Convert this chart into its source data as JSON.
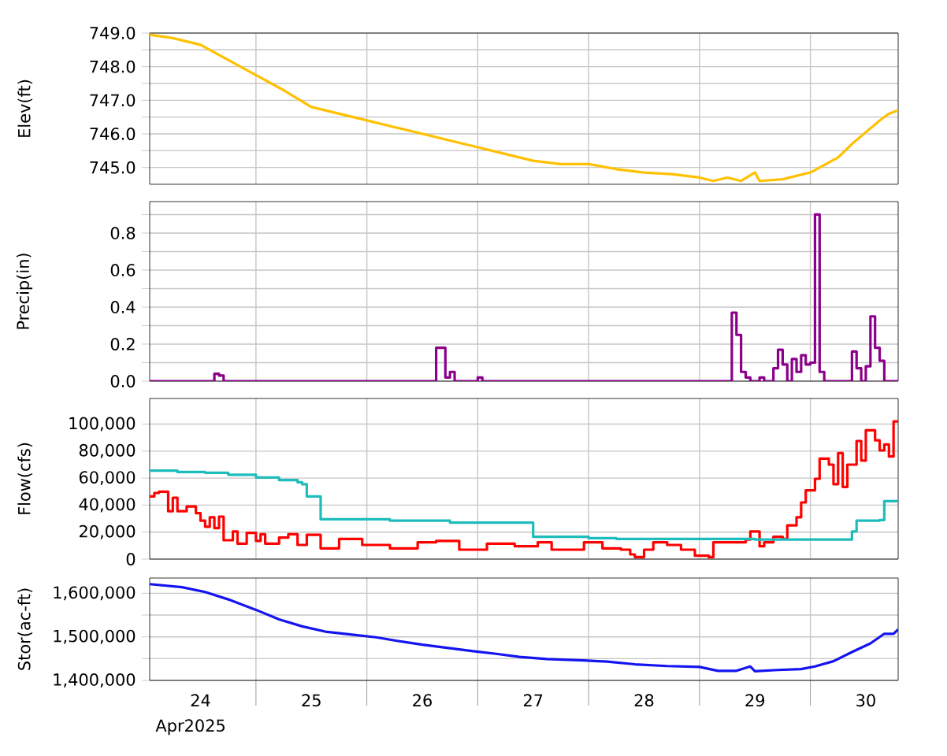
{
  "chart_data": [
    {
      "type": "line",
      "ylabel": "Elev(ft)",
      "color": "#ffc000",
      "grid": true,
      "tick_labels": "y",
      "xlim": [
        "2025-04-24T01:00",
        "2025-04-30T19:00"
      ],
      "xticks": [
        {
          "value": "2025-04-25T00:00",
          "label": null
        },
        {
          "value": "2025-04-26T00:00",
          "label": null
        },
        {
          "value": "2025-04-27T00:00",
          "label": null
        },
        {
          "value": "2025-04-28T00:00",
          "label": null
        },
        {
          "value": "2025-04-29T00:00",
          "label": null
        },
        {
          "value": "2025-04-30T00:00",
          "label": null
        }
      ],
      "ylim": [
        744.5,
        749.0
      ],
      "yticks": [
        {
          "value": 745,
          "label": "745.0"
        },
        {
          "value": 745.5,
          "label": null
        },
        {
          "value": 746,
          "label": "746.0"
        },
        {
          "value": 746.5,
          "label": null
        },
        {
          "value": 747,
          "label": "747.0"
        },
        {
          "value": 747.5,
          "label": null
        },
        {
          "value": 748,
          "label": "748.0"
        },
        {
          "value": 748.5,
          "label": null
        },
        {
          "value": 749,
          "label": "749.0"
        }
      ],
      "x": [
        "2025-04-24T01:00",
        "2025-04-24T06:00",
        "2025-04-24T12:00",
        "2025-04-24T18:00",
        "2025-04-25T00:00",
        "2025-04-25T06:00",
        "2025-04-25T12:00",
        "2025-04-25T18:00",
        "2025-04-26T00:00",
        "2025-04-26T06:00",
        "2025-04-26T12:00",
        "2025-04-26T18:00",
        "2025-04-27T00:00",
        "2025-04-27T06:00",
        "2025-04-27T12:00",
        "2025-04-27T18:00",
        "2025-04-28T00:00",
        "2025-04-28T06:00",
        "2025-04-28T12:00",
        "2025-04-28T18:00",
        "2025-04-29T00:00",
        "2025-04-29T03:00",
        "2025-04-29T06:00",
        "2025-04-29T09:00",
        "2025-04-29T12:00",
        "2025-04-29T13:00",
        "2025-04-29T18:00",
        "2025-04-30T00:00",
        "2025-04-30T06:00",
        "2025-04-30T09:00",
        "2025-04-30T12:00",
        "2025-04-30T15:00",
        "2025-04-30T17:00",
        "2025-04-30T19:00"
      ],
      "values": [
        748.95,
        748.85,
        748.65,
        748.2,
        747.75,
        747.3,
        746.8,
        746.6,
        746.4,
        746.2,
        746.0,
        745.8,
        745.6,
        745.4,
        745.2,
        745.1,
        745.1,
        744.95,
        744.85,
        744.8,
        744.7,
        744.6,
        744.7,
        744.6,
        744.85,
        744.6,
        744.65,
        744.85,
        745.3,
        745.7,
        746.05,
        746.4,
        746.6,
        746.7
      ]
    },
    {
      "type": "step",
      "ylabel": "Precip(in)",
      "color": "#8b008b",
      "grid": true,
      "tick_labels": "y",
      "xlim": [
        "2025-04-24T01:00",
        "2025-04-30T19:00"
      ],
      "xticks": [
        {
          "value": "2025-04-25T00:00",
          "label": null
        },
        {
          "value": "2025-04-26T00:00",
          "label": null
        },
        {
          "value": "2025-04-27T00:00",
          "label": null
        },
        {
          "value": "2025-04-28T00:00",
          "label": null
        },
        {
          "value": "2025-04-29T00:00",
          "label": null
        },
        {
          "value": "2025-04-30T00:00",
          "label": null
        }
      ],
      "ylim": [
        0,
        0.97
      ],
      "yticks": [
        {
          "value": 0,
          "label": "0.0"
        },
        {
          "value": 0.1,
          "label": null
        },
        0.2,
        {
          "value": 0.3,
          "label": null
        },
        0.4,
        {
          "value": 0.5,
          "label": null
        },
        0.6,
        {
          "value": 0.7,
          "label": null
        },
        0.8,
        {
          "value": 0.9,
          "label": null
        }
      ],
      "x": [
        "2025-04-24T01:00",
        "2025-04-24T15:00",
        "2025-04-24T16:00",
        "2025-04-24T17:00",
        "2025-04-26T15:00",
        "2025-04-26T17:00",
        "2025-04-26T18:00",
        "2025-04-26T19:00",
        "2025-04-27T00:00",
        "2025-04-27T01:00",
        "2025-04-29T07:00",
        "2025-04-29T08:00",
        "2025-04-29T09:00",
        "2025-04-29T10:00",
        "2025-04-29T11:00",
        "2025-04-29T13:00",
        "2025-04-29T14:00",
        "2025-04-29T16:00",
        "2025-04-29T17:00",
        "2025-04-29T18:00",
        "2025-04-29T19:00",
        "2025-04-29T20:00",
        "2025-04-29T21:00",
        "2025-04-29T22:00",
        "2025-04-29T23:00",
        "2025-04-30T00:00",
        "2025-04-30T01:00",
        "2025-04-30T02:00",
        "2025-04-30T03:00",
        "2025-04-30T09:00",
        "2025-04-30T10:00",
        "2025-04-30T11:00",
        "2025-04-30T12:00",
        "2025-04-30T13:00",
        "2025-04-30T14:00",
        "2025-04-30T15:00",
        "2025-04-30T16:00",
        "2025-04-30T19:00"
      ],
      "values": [
        0,
        0.04,
        0.03,
        0,
        0.18,
        0.02,
        0.05,
        0,
        0.02,
        0,
        0.37,
        0.25,
        0.05,
        0.02,
        0,
        0.02,
        0,
        0.07,
        0.17,
        0.09,
        0,
        0.12,
        0.05,
        0.14,
        0.09,
        0.1,
        0.9,
        0.05,
        0,
        0.16,
        0.07,
        0,
        0.08,
        0.35,
        0.18,
        0.11,
        0,
        0
      ]
    },
    {
      "type": "step",
      "ylabel": "Flow(cfs)",
      "grid": true,
      "tick_labels": "y",
      "xlim": [
        "2025-04-24T01:00",
        "2025-04-30T19:00"
      ],
      "xticks": [
        {
          "value": "2025-04-25T00:00",
          "label": null
        },
        {
          "value": "2025-04-26T00:00",
          "label": null
        },
        {
          "value": "2025-04-27T00:00",
          "label": null
        },
        {
          "value": "2025-04-28T00:00",
          "label": null
        },
        {
          "value": "2025-04-29T00:00",
          "label": null
        },
        {
          "value": "2025-04-30T00:00",
          "label": null
        }
      ],
      "ylim": [
        0,
        119000
      ],
      "yticks": [
        0,
        {
          "value": 20000,
          "label": "20,000"
        },
        {
          "value": 40000,
          "label": "40,000"
        },
        {
          "value": 60000,
          "label": "60,000"
        },
        {
          "value": 80000,
          "label": "80,000"
        },
        {
          "value": 100000,
          "label": "100,000"
        }
      ],
      "series": [
        {
          "color": "#ff0000",
          "x": [
            "2025-04-24T01:00",
            "2025-04-24T02:00",
            "2025-04-24T03:00",
            "2025-04-24T05:00",
            "2025-04-24T06:00",
            "2025-04-24T07:00",
            "2025-04-24T09:00",
            "2025-04-24T11:00",
            "2025-04-24T12:00",
            "2025-04-24T13:00",
            "2025-04-24T14:00",
            "2025-04-24T15:00",
            "2025-04-24T16:00",
            "2025-04-24T17:00",
            "2025-04-24T19:00",
            "2025-04-24T20:00",
            "2025-04-24T22:00",
            "2025-04-25T00:00",
            "2025-04-25T01:00",
            "2025-04-25T02:00",
            "2025-04-25T05:00",
            "2025-04-25T07:00",
            "2025-04-25T09:00",
            "2025-04-25T11:00",
            "2025-04-25T14:00",
            "2025-04-25T18:00",
            "2025-04-25T23:00",
            "2025-04-26T05:00",
            "2025-04-26T11:00",
            "2025-04-26T15:00",
            "2025-04-26T20:00",
            "2025-04-27T02:00",
            "2025-04-27T08:00",
            "2025-04-27T13:00",
            "2025-04-27T16:00",
            "2025-04-27T23:00",
            "2025-04-28T03:00",
            "2025-04-28T07:00",
            "2025-04-28T09:00",
            "2025-04-28T10:00",
            "2025-04-28T12:00",
            "2025-04-28T14:00",
            "2025-04-28T17:00",
            "2025-04-28T20:00",
            "2025-04-28T23:00",
            "2025-04-29T02:00",
            "2025-04-29T03:00",
            "2025-04-29T10:00",
            "2025-04-29T11:00",
            "2025-04-29T13:00",
            "2025-04-29T14:00",
            "2025-04-29T16:00",
            "2025-04-29T18:00",
            "2025-04-29T19:00",
            "2025-04-29T21:00",
            "2025-04-29T22:00",
            "2025-04-29T23:00",
            "2025-04-30T01:00",
            "2025-04-30T02:00",
            "2025-04-30T04:00",
            "2025-04-30T05:00",
            "2025-04-30T06:00",
            "2025-04-30T07:00",
            "2025-04-30T08:00",
            "2025-04-30T10:00",
            "2025-04-30T11:00",
            "2025-04-30T12:00",
            "2025-04-30T14:00",
            "2025-04-30T15:00",
            "2025-04-30T16:00",
            "2025-04-30T17:00",
            "2025-04-30T18:00",
            "2025-04-30T19:00"
          ],
          "values": [
            46500,
            49000,
            50000,
            35500,
            45500,
            35500,
            39000,
            34000,
            28500,
            24000,
            31000,
            23000,
            31500,
            14000,
            20500,
            11500,
            19500,
            13500,
            18500,
            11500,
            16000,
            18500,
            10500,
            18000,
            8000,
            15000,
            10500,
            8000,
            12500,
            13500,
            7000,
            11500,
            9500,
            12500,
            7000,
            12500,
            8000,
            7000,
            3500,
            1500,
            7000,
            12500,
            10500,
            7000,
            2500,
            1500,
            12500,
            14500,
            20500,
            9500,
            12500,
            16500,
            15000,
            25000,
            31000,
            42000,
            51000,
            59500,
            74500,
            70000,
            55500,
            78500,
            53500,
            70000,
            87500,
            73000,
            95500,
            88000,
            80500,
            85000,
            76000,
            102000,
            102000
          ]
        },
        {
          "color": "#1fbcbc",
          "x": [
            "2025-04-24T01:00",
            "2025-04-24T07:00",
            "2025-04-24T13:00",
            "2025-04-24T18:00",
            "2025-04-25T00:00",
            "2025-04-25T05:00",
            "2025-04-25T09:00",
            "2025-04-25T10:00",
            "2025-04-25T11:00",
            "2025-04-25T14:00",
            "2025-04-26T05:00",
            "2025-04-26T18:00",
            "2025-04-27T12:00",
            "2025-04-28T00:00",
            "2025-04-28T06:00",
            "2025-04-29T12:00",
            "2025-04-30T09:00",
            "2025-04-30T10:00",
            "2025-04-30T15:00",
            "2025-04-30T16:00",
            "2025-04-30T19:00"
          ],
          "values": [
            65500,
            64500,
            64000,
            62500,
            60500,
            58500,
            57000,
            55500,
            46500,
            29500,
            28500,
            27000,
            16500,
            15500,
            15000,
            14500,
            20500,
            28500,
            29000,
            43000,
            43000
          ]
        }
      ]
    },
    {
      "type": "line",
      "ylabel": "Stor(ac-ft)",
      "xlabel": "Apr2025",
      "color": "#1414f0",
      "grid": true,
      "xlim": [
        "2025-04-24T01:00",
        "2025-04-30T19:00"
      ],
      "xticks": [
        {
          "value": "2025-04-24T12:00",
          "label": "24"
        },
        {
          "value": "2025-04-25T00:00",
          "label": null
        },
        {
          "value": "2025-04-25T12:00",
          "label": "25"
        },
        {
          "value": "2025-04-26T00:00",
          "label": null
        },
        {
          "value": "2025-04-26T12:00",
          "label": "26"
        },
        {
          "value": "2025-04-27T00:00",
          "label": null
        },
        {
          "value": "2025-04-27T12:00",
          "label": "27"
        },
        {
          "value": "2025-04-28T00:00",
          "label": null
        },
        {
          "value": "2025-04-28T12:00",
          "label": "28"
        },
        {
          "value": "2025-04-29T00:00",
          "label": null
        },
        {
          "value": "2025-04-29T12:00",
          "label": "29"
        },
        {
          "value": "2025-04-30T00:00",
          "label": null
        },
        {
          "value": "2025-04-30T12:00",
          "label": "30"
        }
      ],
      "ylim": [
        1400000,
        1635000
      ],
      "yticks": [
        {
          "value": 1400000,
          "label": "1,400,000"
        },
        {
          "value": 1450000,
          "label": null
        },
        {
          "value": 1500000,
          "label": "1,500,000"
        },
        {
          "value": 1550000,
          "label": null
        },
        {
          "value": 1600000,
          "label": "1,600,000"
        }
      ],
      "x": [
        "2025-04-24T01:00",
        "2025-04-24T08:00",
        "2025-04-24T13:00",
        "2025-04-24T18:00",
        "2025-04-25T00:00",
        "2025-04-25T05:00",
        "2025-04-25T10:00",
        "2025-04-25T15:00",
        "2025-04-25T20:00",
        "2025-04-26T02:00",
        "2025-04-26T07:00",
        "2025-04-26T12:00",
        "2025-04-26T18:00",
        "2025-04-26T23:00",
        "2025-04-27T04:00",
        "2025-04-27T09:00",
        "2025-04-27T15:00",
        "2025-04-27T23:00",
        "2025-04-28T04:00",
        "2025-04-28T10:00",
        "2025-04-28T17:00",
        "2025-04-29T00:00",
        "2025-04-29T04:00",
        "2025-04-29T08:00",
        "2025-04-29T11:00",
        "2025-04-29T12:00",
        "2025-04-29T17:00",
        "2025-04-29T22:00",
        "2025-04-30T01:00",
        "2025-04-30T05:00",
        "2025-04-30T09:00",
        "2025-04-30T13:00",
        "2025-04-30T16:00",
        "2025-04-30T18:00",
        "2025-04-30T19:00"
      ],
      "values": [
        1621000,
        1614000,
        1603000,
        1586000,
        1562000,
        1540000,
        1524000,
        1512000,
        1506000,
        1499000,
        1490000,
        1482000,
        1474000,
        1467000,
        1461000,
        1454000,
        1449000,
        1446000,
        1443000,
        1437000,
        1433000,
        1431000,
        1422000,
        1422000,
        1432000,
        1421000,
        1424000,
        1426000,
        1432000,
        1444000,
        1465000,
        1485000,
        1507000,
        1507000,
        1517000
      ]
    }
  ]
}
